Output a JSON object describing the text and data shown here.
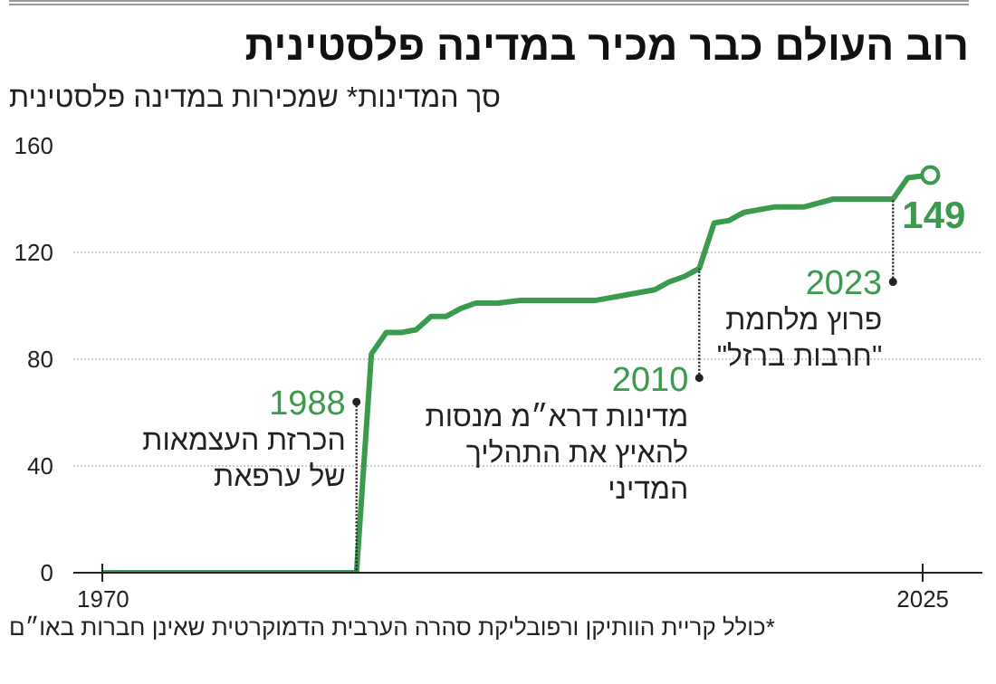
{
  "chart_data": {
    "type": "line",
    "title": "רוב העולם כבר מכיר במדינה פלסטינית",
    "subtitle": "סך המדינות* שמכירות במדינה פלסטינית",
    "x": [
      1970,
      1987,
      1988,
      1989,
      1990,
      1991,
      1992,
      1993,
      1994,
      1995,
      1996.5,
      1998,
      2003,
      2005,
      2007,
      2008,
      2009,
      2010,
      2011,
      2012,
      2013,
      2015,
      2017,
      2019,
      2023,
      2024,
      2025.5
    ],
    "series": [
      {
        "color": "#3a9a4e",
        "values": [
          0,
          0,
          82,
          90,
          90,
          91,
          96,
          96,
          99,
          101,
          101,
          102,
          102,
          104,
          106,
          109,
          111,
          114,
          131,
          132,
          135,
          137,
          137,
          140,
          140,
          148,
          149
        ],
        "value_labels": [
          null,
          null,
          null,
          null,
          null,
          null,
          null,
          null,
          null,
          null,
          null,
          null,
          null,
          null,
          null,
          null,
          null,
          null,
          null,
          null,
          null,
          null,
          null,
          null,
          null,
          null,
          "149"
        ]
      }
    ],
    "xlim": [
      1968,
      2029
    ],
    "xticks": [
      1970,
      2025
    ],
    "ylim": [
      0,
      160
    ],
    "yticks": [
      0,
      40,
      80,
      120,
      160
    ],
    "grid": "y",
    "line_style": "solid",
    "annotations": [
      {
        "text": "1988\nהכרזת העצמאות\nשל ערפאת",
        "x": 1987,
        "y": 64
      },
      {
        "text": "2010\nמדינות דרא״מ מנסות\nלהאיץ את התהליך\nהמדיני",
        "x": 2010,
        "y": 73
      },
      {
        "text": "2023\nפרוץ מלחמת\n\"חרבות ברזל\"",
        "x": 2023,
        "y": 109
      },
      "*כולל קריית הוותיקן ורפובליקת סהרה הערבית הדמוקרטית שאינן חברות באו״ם"
    ]
  }
}
